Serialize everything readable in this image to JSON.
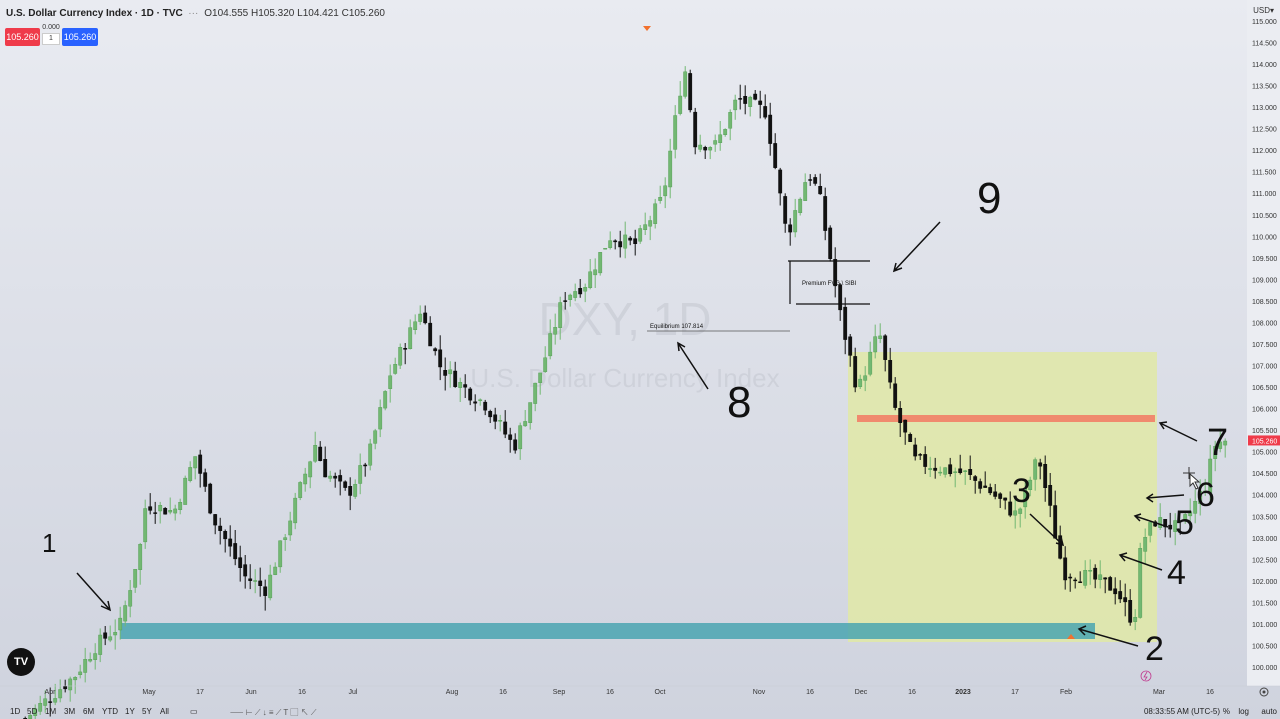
{
  "header": {
    "title": "U.S. Dollar Currency Index · 1D · TVC",
    "ohlc": "O104.555 H105.320 L104.421 C105.260"
  },
  "trade": {
    "sell": "105.260",
    "spread": "0.000",
    "qty": "1",
    "buy": "105.260"
  },
  "currency": "USD",
  "watermark": {
    "symbol": "DXY, 1D",
    "name": "U.S. Dollar Currency Index"
  },
  "toolbar": {
    "timeframes": [
      "1D",
      "5D",
      "1M",
      "3M",
      "6M",
      "YTD",
      "1Y",
      "5Y",
      "All"
    ],
    "time": "08:33:55 AM (UTC-5)",
    "percent": "%",
    "log": "log",
    "auto": "auto"
  },
  "colors": {
    "up": "#72b872",
    "down": "#111111",
    "ob_zone": "#4aa5b0",
    "supply": "#f08a6e",
    "highlight": "#e1e9a6",
    "last_price": "#ef3b4a",
    "background_top": "#e9ebf1",
    "background_bottom": "#cfd3de"
  },
  "annotations": {
    "premium_fvg": "Premium FVG \\ SIBI",
    "equilibrium": "Equilibrium 107.814",
    "numbers": [
      "1",
      "2",
      "3",
      "4",
      "5",
      "6",
      "7",
      "8",
      "9"
    ]
  },
  "chart_data": {
    "type": "candlestick",
    "title": "U.S. Dollar Currency Index · 1D · TVC",
    "ylim": [
      99.7,
      115.3
    ],
    "y_ticks": [
      100.0,
      100.5,
      101.0,
      101.5,
      102.0,
      102.5,
      103.0,
      103.5,
      104.0,
      104.5,
      105.0,
      105.5,
      106.0,
      106.5,
      107.0,
      107.5,
      108.0,
      108.5,
      109.0,
      109.5,
      110.0,
      110.5,
      111.0,
      111.5,
      112.0,
      112.5,
      113.0,
      113.5,
      114.0,
      114.5,
      115.0
    ],
    "x_ticks": [
      "Apr",
      "May",
      "17",
      "Jun",
      "16",
      "Jul",
      "Aug",
      "16",
      "Sep",
      "16",
      "Oct",
      "Nov",
      "16",
      "Dec",
      "16",
      "2023",
      "17",
      "Feb",
      "Mar",
      "16"
    ],
    "last_price": 105.26,
    "equilibrium": 107.814,
    "close_path": [
      [
        "2022-03-25",
        98.8
      ],
      [
        "2022-04-08",
        99.8
      ],
      [
        "2022-04-14",
        100.5
      ],
      [
        "2022-04-21",
        101.0
      ],
      [
        "2022-04-27",
        103.0
      ],
      [
        "2022-04-28",
        103.8
      ],
      [
        "2022-05-06",
        103.6
      ],
      [
        "2022-05-12",
        104.9
      ],
      [
        "2022-05-17",
        103.5
      ],
      [
        "2022-05-26",
        102.1
      ],
      [
        "2022-06-01",
        101.8
      ],
      [
        "2022-06-10",
        104.0
      ],
      [
        "2022-06-15",
        105.2
      ],
      [
        "2022-06-17",
        104.6
      ],
      [
        "2022-06-24",
        104.0
      ],
      [
        "2022-06-30",
        104.9
      ],
      [
        "2022-07-06",
        106.8
      ],
      [
        "2022-07-13",
        108.0
      ],
      [
        "2022-07-14",
        108.4
      ],
      [
        "2022-07-20",
        107.0
      ],
      [
        "2022-07-28",
        106.4
      ],
      [
        "2022-08-02",
        106.1
      ],
      [
        "2022-08-10",
        105.1
      ],
      [
        "2022-08-18",
        107.0
      ],
      [
        "2022-08-24",
        108.6
      ],
      [
        "2022-08-30",
        108.9
      ],
      [
        "2022-09-06",
        110.0
      ],
      [
        "2022-09-13",
        109.8
      ],
      [
        "2022-09-21",
        110.9
      ],
      [
        "2022-09-27",
        114.0
      ],
      [
        "2022-09-30",
        112.2
      ],
      [
        "2022-10-06",
        112.1
      ],
      [
        "2022-10-12",
        113.2
      ],
      [
        "2022-10-20",
        112.9
      ],
      [
        "2022-10-26",
        110.0
      ],
      [
        "2022-11-01",
        111.5
      ],
      [
        "2022-11-04",
        111.0
      ],
      [
        "2022-11-10",
        108.2
      ],
      [
        "2022-11-15",
        106.4
      ],
      [
        "2022-11-21",
        107.8
      ],
      [
        "2022-11-25",
        106.1
      ],
      [
        "2022-12-01",
        104.8
      ],
      [
        "2022-12-09",
        104.6
      ],
      [
        "2022-12-15",
        104.5
      ],
      [
        "2022-12-22",
        104.1
      ],
      [
        "2022-12-30",
        103.5
      ],
      [
        "2023-01-05",
        104.9
      ],
      [
        "2023-01-12",
        102.2
      ],
      [
        "2023-01-19",
        102.1
      ],
      [
        "2023-01-27",
        101.8
      ],
      [
        "2023-02-01",
        101.0
      ],
      [
        "2023-02-03",
        102.9
      ],
      [
        "2023-02-07",
        103.4
      ],
      [
        "2023-02-14",
        103.2
      ],
      [
        "2023-02-21",
        104.2
      ],
      [
        "2023-02-24",
        105.2
      ],
      [
        "2023-02-27",
        105.26
      ]
    ],
    "zones": [
      {
        "name": "bullish order block",
        "from": "2022-04-26",
        "to": "2023-02-06",
        "low": 100.9,
        "high": 101.2
      },
      {
        "name": "discount highlight",
        "from": "2022-11-29",
        "to": "2023-02-27",
        "low": 100.3,
        "high": 107.4
      },
      {
        "name": "supply block",
        "from": "2022-11-30",
        "to": "2023-02-27",
        "low": 105.8,
        "high": 105.95
      }
    ],
    "fvg_lines": [
      109.5,
      108.5
    ]
  }
}
